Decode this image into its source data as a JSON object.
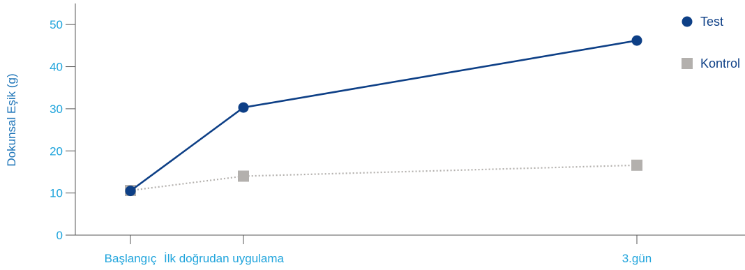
{
  "chart_data": {
    "type": "line",
    "title": "",
    "xlabel": "",
    "ylabel": "Dokunsal Eşik (g)",
    "categories": [
      "Başlangıç",
      "İlk doğrudan uygulama",
      "3.gün"
    ],
    "x": [
      0,
      1,
      8
    ],
    "ylim": [
      0,
      55
    ],
    "yticks": [
      0,
      10,
      20,
      30,
      40,
      50
    ],
    "grid": false,
    "legend_position": "top-right",
    "series": [
      {
        "name": "Test",
        "values": [
          10.5,
          30.3,
          46.2
        ],
        "color": "#0d3f86",
        "marker": "circle",
        "line_style": "solid"
      },
      {
        "name": "Kontrol",
        "values": [
          10.6,
          14.0,
          16.6
        ],
        "color": "#b3b0ad",
        "marker": "square",
        "line_style": "dotted"
      }
    ]
  },
  "colors": {
    "axis": "#555555",
    "tick_text": "#1fa4dc",
    "axis_title": "#1d74b8",
    "legend_text": "#0d3f86"
  }
}
